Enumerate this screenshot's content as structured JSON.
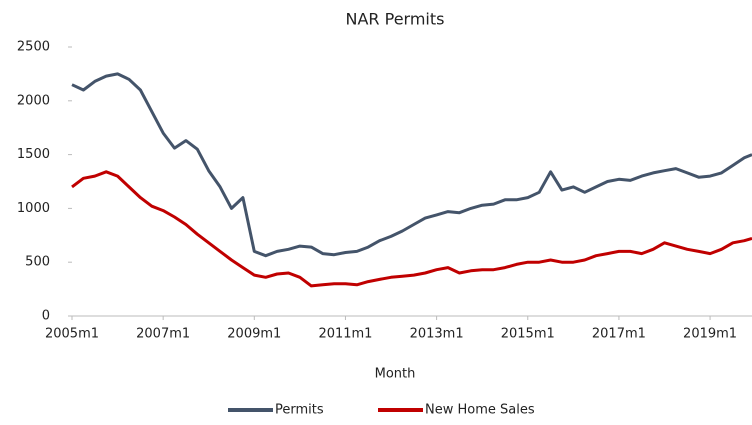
{
  "chart_data": {
    "type": "line",
    "title": "NAR Permits",
    "x_label": "Month",
    "x": [
      2005,
      2005.25,
      2005.5,
      2005.75,
      2006,
      2006.25,
      2006.5,
      2006.75,
      2007,
      2007.25,
      2007.5,
      2007.75,
      2008,
      2008.25,
      2008.5,
      2008.75,
      2009,
      2009.25,
      2009.5,
      2009.75,
      2010,
      2010.25,
      2010.5,
      2010.75,
      2011,
      2011.25,
      2011.5,
      2011.75,
      2012,
      2012.25,
      2012.5,
      2012.75,
      2013,
      2013.25,
      2013.5,
      2013.75,
      2014,
      2014.25,
      2014.5,
      2014.75,
      2015,
      2015.25,
      2015.5,
      2015.75,
      2016,
      2016.25,
      2016.5,
      2016.75,
      2017,
      2017.25,
      2017.5,
      2017.75,
      2018,
      2018.25,
      2018.5,
      2018.75,
      2019,
      2019.25,
      2019.5,
      2019.75,
      2019.92
    ],
    "series": [
      {
        "name": "Permits",
        "color": "#44546a",
        "values": [
          2150,
          2100,
          2180,
          2230,
          2250,
          2200,
          2100,
          1900,
          1700,
          1560,
          1630,
          1550,
          1350,
          1200,
          1000,
          1100,
          600,
          560,
          600,
          620,
          650,
          640,
          580,
          570,
          590,
          600,
          640,
          700,
          740,
          790,
          850,
          910,
          940,
          970,
          960,
          1000,
          1030,
          1040,
          1080,
          1080,
          1100,
          1150,
          1340,
          1170,
          1200,
          1150,
          1200,
          1250,
          1270,
          1260,
          1300,
          1330,
          1350,
          1370,
          1330,
          1290,
          1300,
          1330,
          1400,
          1470,
          1500
        ]
      },
      {
        "name": "New Home Sales",
        "color": "#c00000",
        "values": [
          1200,
          1280,
          1300,
          1340,
          1300,
          1200,
          1100,
          1020,
          980,
          920,
          850,
          760,
          680,
          600,
          520,
          450,
          380,
          360,
          390,
          400,
          360,
          280,
          290,
          300,
          300,
          290,
          320,
          340,
          360,
          370,
          380,
          400,
          430,
          450,
          400,
          420,
          430,
          430,
          450,
          480,
          500,
          500,
          520,
          500,
          500,
          520,
          560,
          580,
          600,
          600,
          580,
          620,
          680,
          650,
          620,
          600,
          580,
          620,
          680,
          700,
          720
        ]
      }
    ],
    "xlim": [
      2005,
      2019.92
    ],
    "xticks": [
      {
        "value": 2005,
        "label": "2005m1"
      },
      {
        "value": 2007,
        "label": "2007m1"
      },
      {
        "value": 2009,
        "label": "2009m1"
      },
      {
        "value": 2011,
        "label": "2011m1"
      },
      {
        "value": 2013,
        "label": "2013m1"
      },
      {
        "value": 2015,
        "label": "2015m1"
      },
      {
        "value": 2017,
        "label": "2017m1"
      },
      {
        "value": 2019,
        "label": "2019m1"
      }
    ],
    "ylim": [
      0,
      2500
    ],
    "yticks": [
      0,
      500,
      1000,
      1500,
      2000,
      2500
    ],
    "legend": "bottom"
  }
}
